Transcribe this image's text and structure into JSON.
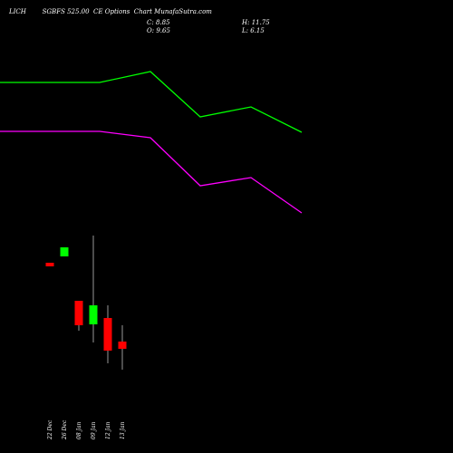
{
  "header": {
    "title": "LICH        SGBFS 525.00  CE Options  Chart MunafaSutra.com",
    "close": "C: 8.85",
    "open": "O: 9.65",
    "high": "H: 11.75",
    "low": "L: 6.15"
  },
  "chart_data": [
    {
      "type": "line",
      "x": [
        "22 Dec",
        "26 Dec",
        "08 Jan",
        "09 Jan",
        "12 Jan",
        "13 Jan"
      ],
      "series": [
        {
          "color": "#00ff00",
          "values": [
            91,
            91,
            79,
            129,
            118,
            146
          ]
        },
        {
          "color": "#ff00ff",
          "values": [
            145,
            145,
            152,
            205,
            196,
            235
          ]
        }
      ],
      "note_values_are_screen_scaled": ""
    },
    {
      "type": "candlestick",
      "x": [
        "22 Dec",
        "26 Dec",
        "08 Jan",
        "09 Jan",
        "12 Jan",
        "13 Jan"
      ],
      "candles": [
        {
          "date": "22 Dec",
          "open": 9.65,
          "close": 9.65,
          "high": 9.65,
          "low": 9.65,
          "color": "#ff0000"
        },
        {
          "date": "26 Dec",
          "open": 9.65,
          "close": 9.65,
          "high": 9.65,
          "low": 9.65,
          "color": "#00ff00"
        },
        {
          "date": "08 Jan",
          "open": 9.65,
          "close": 9.65,
          "high": 9.65,
          "low": 9.65,
          "color": "#ff0000"
        },
        {
          "date": "09 Jan",
          "open": 9.65,
          "close": 9.65,
          "high": 11.75,
          "low": 9.65,
          "color": "#00ff00"
        },
        {
          "date": "12 Jan",
          "open": 9.65,
          "close": 9.65,
          "high": 9.65,
          "low": 9.65,
          "color": "#ff0000"
        },
        {
          "date": "13 Jan",
          "open": 9.65,
          "close": 8.85,
          "high": 9.65,
          "low": 6.15,
          "color": "#ff0000"
        }
      ]
    }
  ]
}
